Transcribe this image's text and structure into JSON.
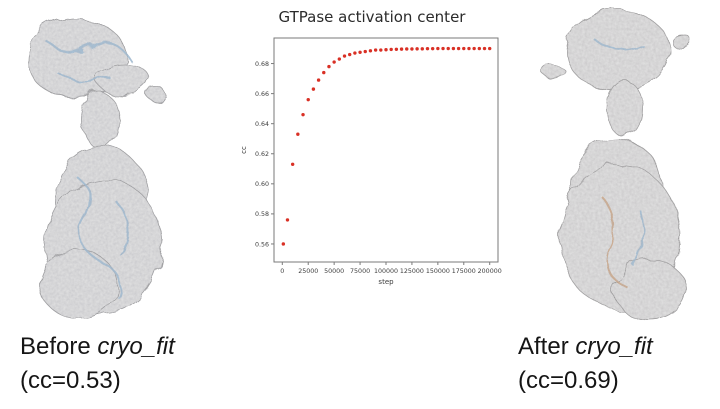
{
  "chart_data": {
    "type": "scatter",
    "title": "GTPase activation center",
    "xlabel": "step",
    "ylabel": "cc",
    "xlim": [
      -8000,
      208000
    ],
    "ylim": [
      0.548,
      0.697
    ],
    "xticks": [
      0,
      25000,
      50000,
      75000,
      100000,
      125000,
      150000,
      175000,
      200000
    ],
    "xtick_labels": [
      "0",
      "25000",
      "50000",
      "75000",
      "100000",
      "125000",
      "150000",
      "175000",
      "200000"
    ],
    "yticks": [
      0.56,
      0.58,
      0.6,
      0.62,
      0.64,
      0.66,
      0.68
    ],
    "ytick_labels": [
      "0.56",
      "0.58",
      "0.60",
      "0.62",
      "0.64",
      "0.66",
      "0.68"
    ],
    "grid": false,
    "legend": false,
    "point_color": "#d93025",
    "series": [
      {
        "name": "cc",
        "x": [
          1000,
          5000,
          10000,
          15000,
          20000,
          25000,
          30000,
          35000,
          40000,
          45000,
          50000,
          55000,
          60000,
          65000,
          70000,
          75000,
          80000,
          85000,
          90000,
          95000,
          100000,
          105000,
          110000,
          115000,
          120000,
          125000,
          130000,
          135000,
          140000,
          145000,
          150000,
          155000,
          160000,
          165000,
          170000,
          175000,
          180000,
          185000,
          190000,
          195000,
          200000
        ],
        "y": [
          0.56,
          0.576,
          0.613,
          0.633,
          0.646,
          0.656,
          0.663,
          0.669,
          0.674,
          0.678,
          0.681,
          0.683,
          0.685,
          0.686,
          0.687,
          0.6875,
          0.688,
          0.6885,
          0.689,
          0.689,
          0.6892,
          0.6894,
          0.6895,
          0.6896,
          0.6897,
          0.6897,
          0.6898,
          0.6898,
          0.6899,
          0.6899,
          0.69,
          0.69,
          0.69,
          0.69,
          0.69,
          0.69,
          0.69,
          0.69,
          0.69,
          0.69,
          0.69
        ]
      }
    ]
  },
  "captions": {
    "before": {
      "prefix": "Before ",
      "italic": "cryo_fit",
      "cc": "(cc=0.53)"
    },
    "after": {
      "prefix": "After ",
      "italic": "cryo_fit",
      "cc": "(cc=0.69)"
    }
  }
}
